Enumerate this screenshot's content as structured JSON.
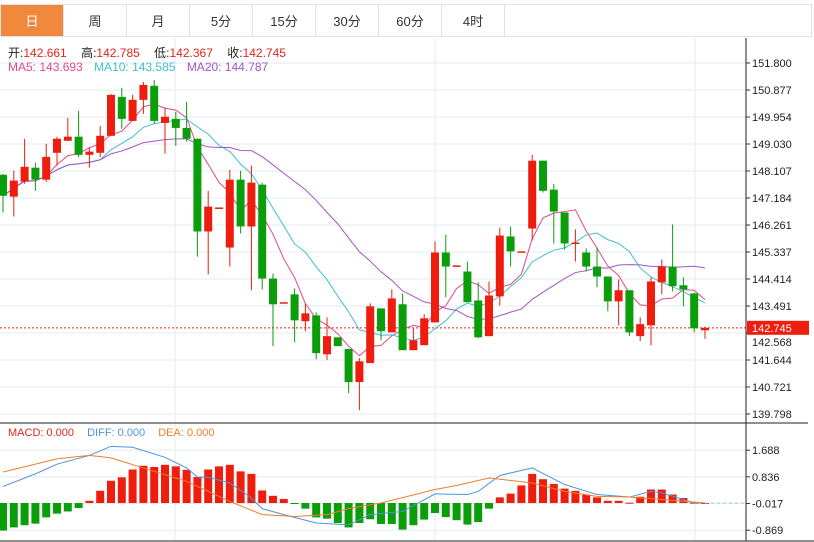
{
  "tabs": [
    {
      "label": "日",
      "active": true
    },
    {
      "label": "周"
    },
    {
      "label": "月"
    },
    {
      "label": "5分"
    },
    {
      "label": "15分"
    },
    {
      "label": "30分"
    },
    {
      "label": "60分"
    },
    {
      "label": "4时"
    }
  ],
  "ohlc_info": {
    "open_label": "开:",
    "open": "142.661",
    "high_label": "高:",
    "high": "142.785",
    "low_label": "低:",
    "low": "142.367",
    "close_label": "收:",
    "close": "142.745"
  },
  "ma_info": {
    "ma5": "MA5: 143.693",
    "ma10": "MA10: 143.585",
    "ma20": "MA20: 144.787"
  },
  "macd_info": {
    "macd": "MACD: 0.000",
    "diff": "DIFF: 0.000",
    "dea": "DEA: 0.000"
  },
  "colors": {
    "up": "#ee1d0e",
    "down": "#0a9e0a",
    "ma5": "#df4a86",
    "ma10": "#3fbfd3",
    "ma20": "#a552c3",
    "diff": "#4b95dc",
    "dea": "#ef7d2a",
    "tab_active": "#f0883e"
  },
  "chart_data": [
    {
      "type": "candlestick",
      "title": "",
      "ylim": [
        139.798,
        151.8
      ],
      "y_ticks": [
        "151.800",
        "150.877",
        "149.954",
        "149.030",
        "148.107",
        "147.184",
        "146.261",
        "145.337",
        "144.414",
        "143.491",
        "142.568",
        "141.644",
        "140.721",
        "139.798"
      ],
      "current_price": "142.745",
      "candles_ohlc": [
        [
          147.98,
          148.0,
          146.69,
          147.26
        ],
        [
          147.23,
          148.12,
          146.55,
          147.78
        ],
        [
          147.74,
          149.21,
          147.67,
          148.25
        ],
        [
          148.22,
          148.39,
          147.43,
          147.81
        ],
        [
          147.81,
          149.04,
          147.74,
          148.59
        ],
        [
          148.73,
          149.28,
          148.29,
          149.21
        ],
        [
          149.14,
          149.92,
          149.14,
          149.28
        ],
        [
          149.28,
          150.16,
          148.59,
          148.66
        ],
        [
          148.66,
          148.9,
          148.22,
          148.77
        ],
        [
          148.73,
          149.65,
          148.59,
          149.31
        ],
        [
          149.31,
          150.74,
          149.31,
          150.71
        ],
        [
          150.64,
          150.95,
          149.55,
          149.89
        ],
        [
          149.82,
          150.71,
          149.82,
          150.54
        ],
        [
          150.54,
          151.15,
          150.06,
          151.05
        ],
        [
          151.02,
          151.22,
          149.72,
          149.82
        ],
        [
          149.75,
          150.27,
          148.7,
          149.96
        ],
        [
          149.89,
          150.13,
          148.97,
          149.58
        ],
        [
          149.58,
          150.47,
          149.11,
          149.21
        ],
        [
          149.21,
          149.21,
          145.18,
          146.04
        ],
        [
          146.04,
          147.43,
          144.57,
          146.89
        ],
        [
          146.86,
          146.86,
          146.86,
          146.86
        ],
        [
          145.49,
          148.15,
          144.84,
          147.81
        ],
        [
          147.81,
          148.12,
          145.97,
          146.21
        ],
        [
          146.21,
          148.29,
          144.03,
          147.71
        ],
        [
          147.64,
          147.71,
          144.06,
          144.43
        ],
        [
          144.43,
          144.6,
          142.12,
          143.55
        ],
        [
          143.62,
          143.62,
          143.62,
          143.62
        ],
        [
          143.89,
          144.09,
          142.25,
          143.0
        ],
        [
          142.97,
          143.58,
          142.63,
          143.24
        ],
        [
          143.17,
          143.27,
          141.67,
          141.88
        ],
        [
          141.84,
          143.1,
          141.64,
          142.46
        ],
        [
          142.42,
          142.42,
          142.12,
          142.12
        ],
        [
          142.02,
          142.02,
          140.51,
          140.89
        ],
        [
          140.89,
          141.71,
          139.93,
          141.6
        ],
        [
          141.54,
          143.58,
          141.54,
          143.48
        ],
        [
          143.41,
          143.41,
          142.32,
          142.63
        ],
        [
          142.59,
          144.06,
          142.59,
          143.75
        ],
        [
          143.55,
          143.92,
          141.98,
          141.98
        ],
        [
          141.98,
          142.73,
          141.98,
          142.32
        ],
        [
          142.15,
          143.21,
          142.15,
          143.07
        ],
        [
          142.93,
          145.7,
          142.93,
          145.32
        ],
        [
          145.32,
          145.93,
          143.79,
          144.84
        ],
        [
          144.88,
          144.88,
          144.88,
          144.88
        ],
        [
          144.67,
          145.01,
          143.62,
          143.62
        ],
        [
          143.68,
          144.3,
          142.39,
          142.42
        ],
        [
          142.46,
          144.33,
          142.46,
          143.85
        ],
        [
          143.82,
          146.17,
          143.51,
          145.9
        ],
        [
          145.87,
          146.21,
          144.84,
          145.36
        ],
        [
          145.36,
          145.36,
          145.36,
          145.36
        ],
        [
          146.14,
          148.66,
          145.73,
          148.46
        ],
        [
          148.46,
          148.46,
          147.37,
          147.43
        ],
        [
          147.47,
          147.67,
          145.63,
          146.72
        ],
        [
          146.69,
          146.69,
          145.42,
          145.63
        ],
        [
          145.66,
          146.11,
          145.01,
          145.66
        ],
        [
          145.32,
          145.46,
          144.67,
          144.84
        ],
        [
          144.84,
          145.49,
          144.13,
          144.5
        ],
        [
          144.5,
          144.5,
          143.31,
          143.65
        ],
        [
          143.65,
          144.4,
          142.83,
          144.03
        ],
        [
          144.03,
          144.03,
          142.46,
          142.59
        ],
        [
          142.46,
          143.1,
          142.29,
          142.87
        ],
        [
          142.83,
          144.47,
          142.15,
          144.33
        ],
        [
          144.3,
          145.08,
          143.89,
          144.84
        ],
        [
          144.84,
          146.28,
          143.99,
          144.17
        ],
        [
          144.2,
          144.47,
          143.48,
          144.06
        ],
        [
          143.92,
          143.95,
          142.59,
          142.73
        ],
        [
          142.661,
          142.785,
          142.367,
          142.745
        ]
      ],
      "ma_periods": [
        5,
        10,
        20
      ]
    },
    {
      "type": "bar+line",
      "title": "MACD",
      "ylim": [
        -1.0,
        1.85
      ],
      "y_ticks": [
        "1.688",
        "0.836",
        "-0.017",
        "-0.869"
      ],
      "macd": [
        -0.88,
        -0.78,
        -0.71,
        -0.66,
        -0.46,
        -0.34,
        -0.27,
        -0.16,
        0.07,
        0.39,
        0.71,
        0.82,
        1.07,
        1.19,
        1.15,
        1.22,
        1.17,
        1.06,
        0.83,
        1.07,
        1.17,
        1.22,
        1.01,
        0.93,
        0.4,
        0.23,
        0.13,
        -0.03,
        -0.18,
        -0.46,
        -0.5,
        -0.64,
        -0.78,
        -0.64,
        -0.52,
        -0.67,
        -0.67,
        -0.85,
        -0.71,
        -0.53,
        -0.32,
        -0.45,
        -0.55,
        -0.69,
        -0.61,
        -0.18,
        0.18,
        0.3,
        0.56,
        0.93,
        0.76,
        0.61,
        0.46,
        0.39,
        0.27,
        0.18,
        0.07,
        0.07,
        0.01,
        0.2,
        0.43,
        0.43,
        0.27,
        0.16,
        0.01,
        0.0
      ],
      "diff_points": [
        [
          1,
          0.53
        ],
        [
          4,
          0.93
        ],
        [
          6,
          1.24
        ],
        [
          9,
          1.52
        ],
        [
          11,
          1.81
        ],
        [
          13,
          1.78
        ],
        [
          16,
          1.46
        ],
        [
          18,
          1.12
        ],
        [
          19,
          0.83
        ],
        [
          20,
          0.82
        ],
        [
          22,
          0.64
        ],
        [
          24,
          0.16
        ],
        [
          25,
          -0.18
        ],
        [
          27,
          -0.37
        ],
        [
          30,
          -0.64
        ],
        [
          33,
          -0.7
        ],
        [
          35,
          -0.37
        ],
        [
          38,
          -0.27
        ],
        [
          41,
          0.29
        ],
        [
          44,
          0.27
        ],
        [
          45,
          0.37
        ],
        [
          47,
          0.88
        ],
        [
          50,
          1.12
        ],
        [
          53,
          0.59
        ],
        [
          56,
          0.27
        ],
        [
          59,
          0.19
        ],
        [
          61,
          0.37
        ],
        [
          62,
          0.32
        ],
        [
          65,
          0.0
        ],
        [
          66,
          0.0
        ]
      ],
      "dea_points": [
        [
          1,
          0.99
        ],
        [
          6,
          1.41
        ],
        [
          9,
          1.52
        ],
        [
          11,
          1.44
        ],
        [
          14,
          1.12
        ],
        [
          18,
          0.69
        ],
        [
          22,
          0.05
        ],
        [
          25,
          -0.37
        ],
        [
          28,
          -0.43
        ],
        [
          31,
          -0.37
        ],
        [
          33,
          -0.18
        ],
        [
          36,
          0.0
        ],
        [
          41,
          0.43
        ],
        [
          43,
          0.56
        ],
        [
          46,
          0.8
        ],
        [
          50,
          0.64
        ],
        [
          53,
          0.37
        ],
        [
          56,
          0.21
        ],
        [
          59,
          0.19
        ],
        [
          62,
          0.11
        ],
        [
          66,
          0.0
        ]
      ]
    }
  ]
}
